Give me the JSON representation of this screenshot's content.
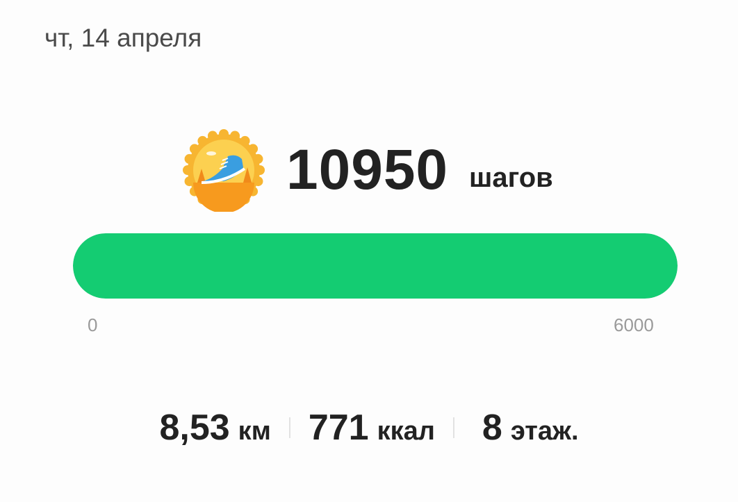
{
  "date": "чт, 14 апреля",
  "badge_icon": "running-shoe-badge-icon",
  "steps": {
    "value": "10950",
    "unit": "шагов",
    "count": 10950,
    "goal": 6000
  },
  "progress": {
    "min_label": "0",
    "max_label": "6000",
    "color": "#14cc72"
  },
  "stats": [
    {
      "value": "8,53",
      "unit": "км"
    },
    {
      "value": "771",
      "unit": "ккал"
    },
    {
      "value": "8",
      "unit": "этаж."
    }
  ]
}
